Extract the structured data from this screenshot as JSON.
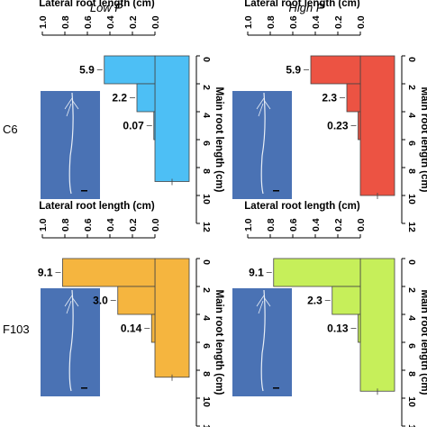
{
  "column_titles": [
    "Low P",
    "High P"
  ],
  "row_labels": [
    "C6",
    "F103"
  ],
  "chart_data": [
    {
      "type": "bar",
      "panel": "C6 Low P",
      "xlabel": "Lateral root length (cm)",
      "ylabel": "Main root length (cm)",
      "lateral_xlim": [
        1.0,
        0.0
      ],
      "lateral_ticks": [
        "1.0",
        "0.8",
        "0.6",
        "0.4",
        "0.2",
        "0.0"
      ],
      "main_ylim": [
        0,
        12
      ],
      "main_ticks": [
        "0",
        "2",
        "4",
        "6",
        "8",
        "10",
        "12"
      ],
      "main_root_length": 9.0,
      "color": "#4dbff5",
      "lateral_bins": [
        [
          0,
          2
        ],
        [
          2,
          4
        ],
        [
          4,
          6
        ]
      ],
      "lateral_lengths": [
        0.45,
        0.16,
        0.01
      ],
      "lateral_counts": [
        "5.9",
        "2.2",
        "0.07"
      ]
    },
    {
      "type": "bar",
      "panel": "C6 High P",
      "xlabel": "Lateral root length (cm)",
      "ylabel": "Main root length (cm)",
      "lateral_xlim": [
        1.0,
        0.0
      ],
      "lateral_ticks": [
        "1.0",
        "0.8",
        "0.6",
        "0.4",
        "0.2",
        "0.0"
      ],
      "main_ylim": [
        0,
        12
      ],
      "main_ticks": [
        "0",
        "2",
        "4",
        "6",
        "8",
        "10",
        "12"
      ],
      "main_root_length": 10.0,
      "color": "#ec5343",
      "lateral_bins": [
        [
          0,
          2
        ],
        [
          2,
          4
        ],
        [
          4,
          6
        ]
      ],
      "lateral_lengths": [
        0.44,
        0.12,
        0.02
      ],
      "lateral_counts": [
        "5.9",
        "2.3",
        "0.23"
      ]
    },
    {
      "type": "bar",
      "panel": "F103 Low P",
      "xlabel": "Lateral root length (cm)",
      "ylabel": "Main root length (cm)",
      "lateral_xlim": [
        1.0,
        0.0
      ],
      "lateral_ticks": [
        "1.0",
        "0.8",
        "0.6",
        "0.4",
        "0.2",
        "0.0"
      ],
      "main_ylim": [
        0,
        12
      ],
      "main_ticks": [
        "0",
        "2",
        "4",
        "6",
        "8",
        "10",
        "12"
      ],
      "main_root_length": 8.5,
      "color": "#f5b53f",
      "lateral_bins": [
        [
          0,
          2
        ],
        [
          2,
          4
        ],
        [
          4,
          6
        ]
      ],
      "lateral_lengths": [
        0.82,
        0.33,
        0.03
      ],
      "lateral_counts": [
        "9.1",
        "3.0",
        "0.14"
      ]
    },
    {
      "type": "bar",
      "panel": "F103 High P",
      "xlabel": "Lateral root length (cm)",
      "ylabel": "Main root length (cm)",
      "lateral_xlim": [
        1.0,
        0.0
      ],
      "lateral_ticks": [
        "1.0",
        "0.8",
        "0.6",
        "0.4",
        "0.2",
        "0.0"
      ],
      "main_ylim": [
        0,
        12
      ],
      "main_ticks": [
        "0",
        "2",
        "4",
        "6",
        "8",
        "10",
        "12"
      ],
      "main_root_length": 9.5,
      "color": "#c6ef5a",
      "lateral_bins": [
        [
          0,
          2
        ],
        [
          2,
          4
        ],
        [
          4,
          6
        ]
      ],
      "lateral_lengths": [
        0.77,
        0.25,
        0.02
      ],
      "lateral_counts": [
        "9.1",
        "2.3",
        "0.13"
      ]
    }
  ]
}
